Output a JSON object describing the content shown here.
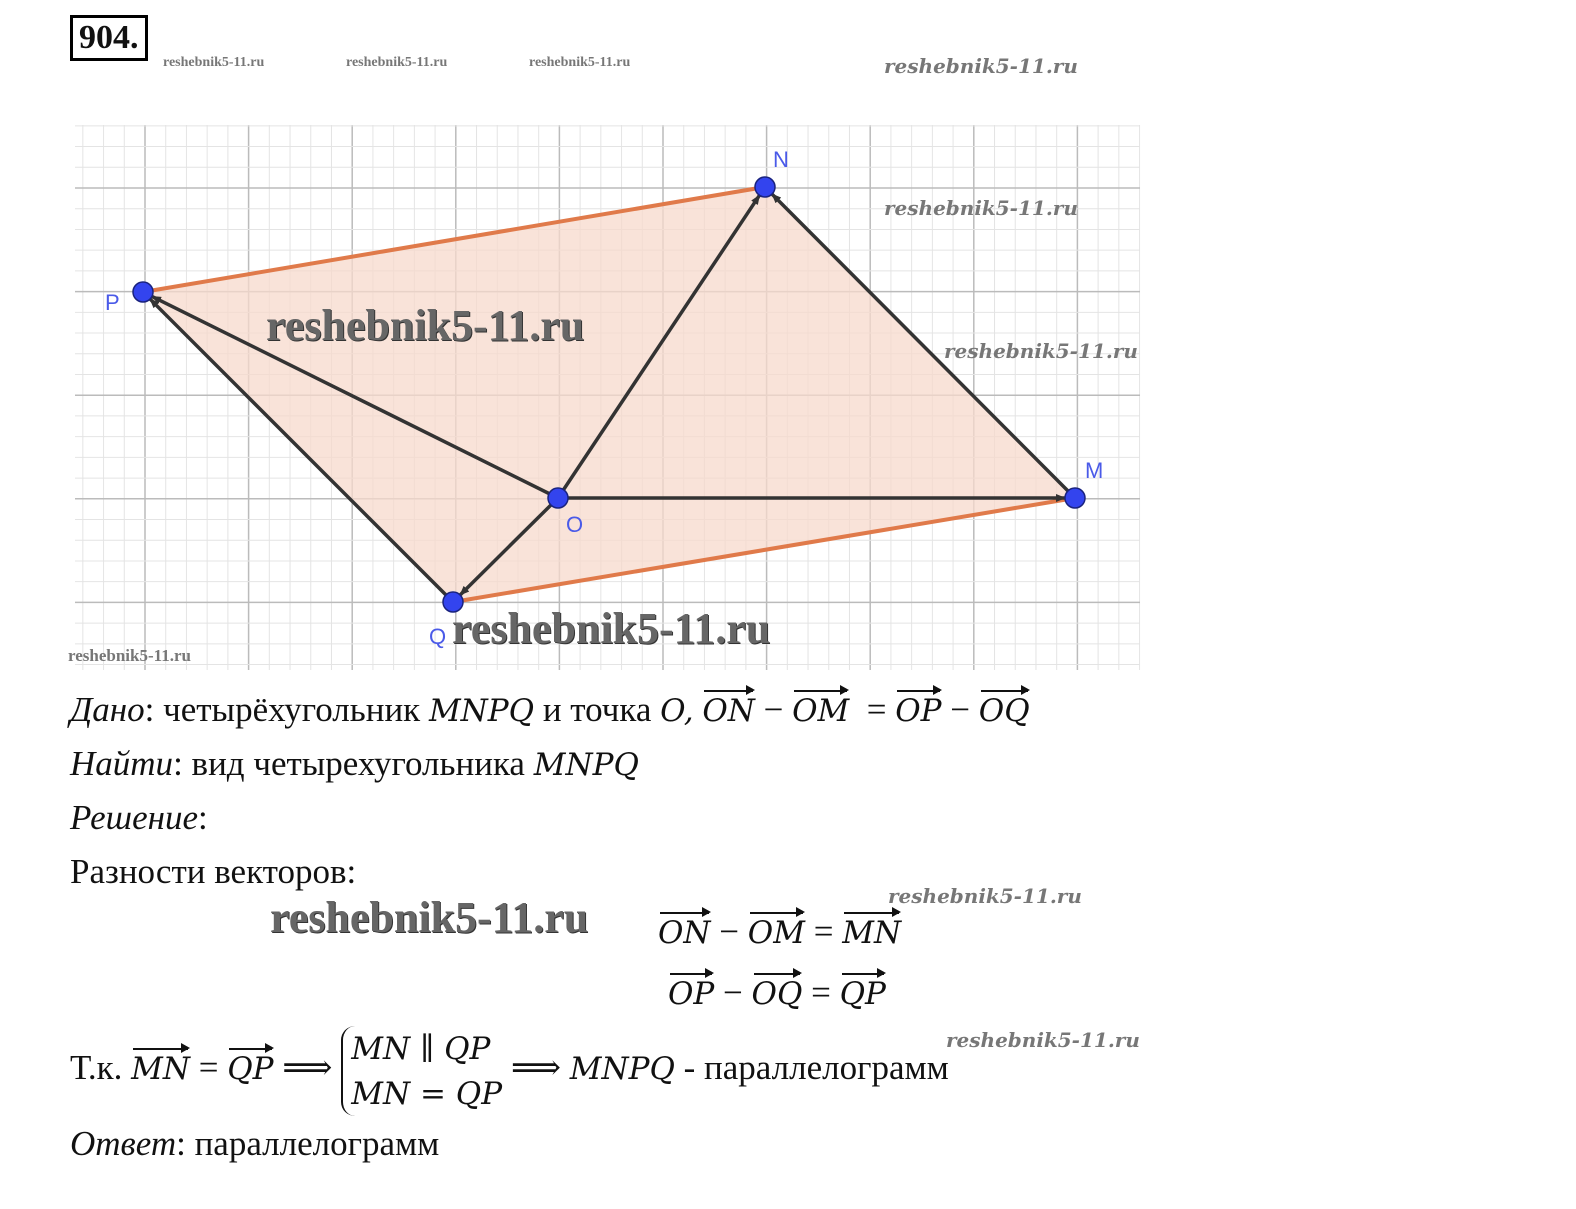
{
  "problem_number": "904.",
  "watermark": "reshebnik5-11.ru",
  "figure": {
    "points": {
      "N": "N",
      "P": "P",
      "M": "M",
      "O": "O",
      "Q": "Q"
    },
    "colors": {
      "fill": "#f7d9cc",
      "side": "#e07a4a",
      "vector": "#333333",
      "point": "#3344ee",
      "label": "#4a5ae8",
      "grid": "#cccccc"
    }
  },
  "given": {
    "label": "Дано",
    "text1": ": четырёхугольник ",
    "quad": "MNPQ",
    "text2": " и точка ",
    "point": "O,",
    "v1": "ON",
    "minus": "−",
    "v2": "OM",
    "eq": "=",
    "v3": "OP",
    "v4": "OQ"
  },
  "find": {
    "label": "Найти",
    "text": ": вид четырехугольника ",
    "quad": "MNPQ"
  },
  "solution": {
    "label": "Решение",
    "colon": ":"
  },
  "differences": {
    "text": "Разности векторов:",
    "eq1": {
      "a": "ON",
      "b": "OM",
      "c": "MN"
    },
    "eq2": {
      "a": "OP",
      "b": "OQ",
      "c": "QP"
    }
  },
  "conclusion": {
    "prefix": "Т.к. ",
    "a": "MN",
    "b": "QP",
    "arrow": "⟹",
    "sys1": "MN ∥ QP",
    "sys2": "MN = QP",
    "quad": "MNPQ",
    "text": " - параллелограмм"
  },
  "answer": {
    "label": "Ответ",
    "text": ": параллелограмм"
  }
}
